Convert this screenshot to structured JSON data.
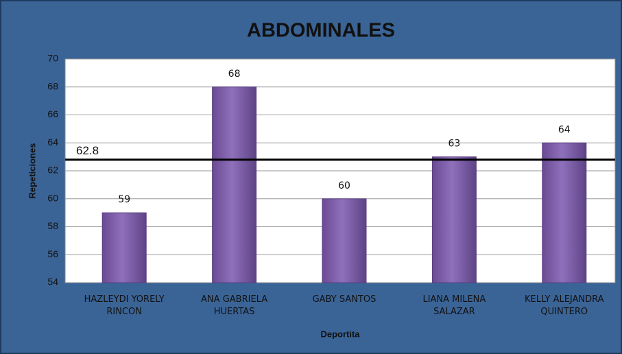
{
  "chart_data": {
    "type": "bar",
    "title": "ABDOMINALES",
    "x_label": "Deportita",
    "y_label": "Repeticiones",
    "categories": [
      "HAZLEYDI YORELY RINCON",
      "ANA GABRIELA HUERTAS",
      "GABY SANTOS",
      "LIANA MILENA SALAZAR",
      "KELLY ALEJANDRA QUINTERO"
    ],
    "values": [
      59,
      68,
      60,
      63,
      64
    ],
    "color": "#8064a2",
    "reference_line": 62.8,
    "ylim": [
      54,
      70
    ],
    "yticks": [
      54,
      56,
      58,
      60,
      62,
      64,
      66,
      68,
      70
    ],
    "grid": true
  }
}
